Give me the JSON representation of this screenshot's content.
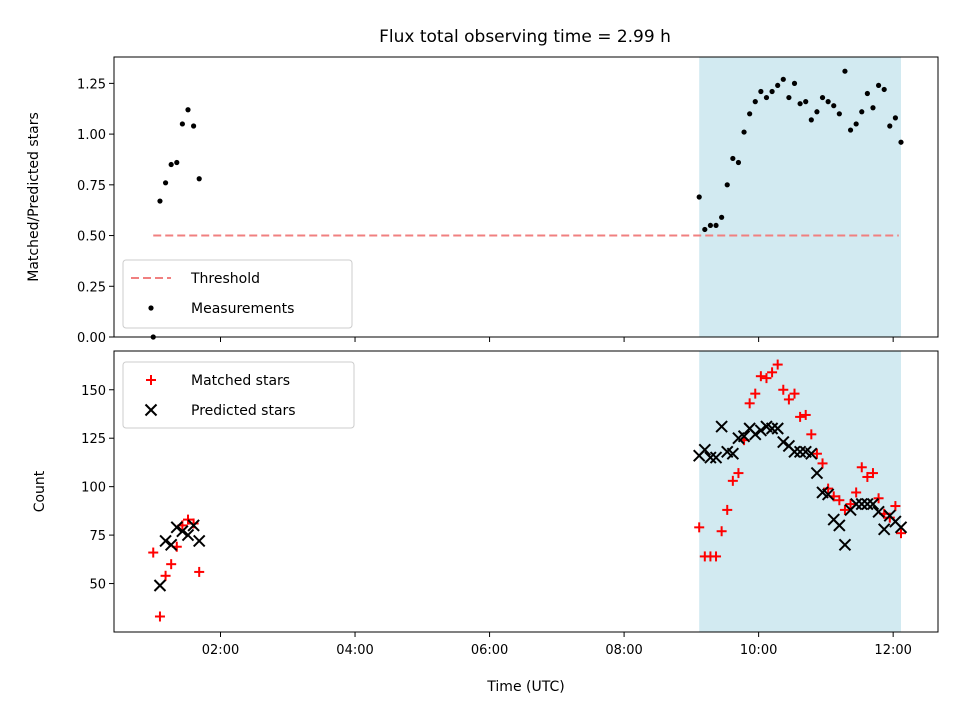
{
  "chart_data": [
    {
      "type": "scatter",
      "title": "Flux total observing time = 2.99 h",
      "xlabel": "",
      "ylabel": "Matched/Predicted stars",
      "xlim": [
        "00:25",
        "12:40"
      ],
      "ylim": [
        0,
        1.38
      ],
      "yticks": [
        0.0,
        0.25,
        0.5,
        0.75,
        1.0,
        1.25
      ],
      "ytick_labels": [
        "0.00",
        "0.25",
        "0.50",
        "0.75",
        "1.00",
        "1.25"
      ],
      "shaded_span": [
        "09:07",
        "12:07"
      ],
      "shaded_color": "#add8e6",
      "legend_position": "lower-left",
      "series": [
        {
          "name": "Threshold",
          "kind": "line",
          "style": "dashed",
          "color": "#f08080",
          "x": [
            "01:00",
            "12:05"
          ],
          "y": [
            0.5,
            0.5
          ]
        },
        {
          "name": "Measurements",
          "kind": "scatter",
          "marker": "dot",
          "color": "#000000",
          "x": [
            "01:00",
            "01:06",
            "01:11",
            "01:16",
            "01:21",
            "01:26",
            "01:31",
            "01:36",
            "01:41",
            "01:46",
            "09:07",
            "09:12",
            "09:17",
            "09:22",
            "09:27",
            "09:32",
            "09:37",
            "09:42",
            "09:47",
            "09:52",
            "09:57",
            "10:02",
            "10:07",
            "10:12",
            "10:17",
            "10:22",
            "10:27",
            "10:32",
            "10:37",
            "10:42",
            "10:47",
            "10:52",
            "10:57",
            "11:02",
            "11:07",
            "11:12",
            "11:17",
            "11:22",
            "11:27",
            "11:32",
            "11:37",
            "11:42",
            "11:47",
            "11:52",
            "11:57",
            "12:02",
            "12:07"
          ],
          "y": [
            0.0,
            0.67,
            0.76,
            0.85,
            0.86,
            1.05,
            1.12,
            1.04,
            0.78,
            null,
            0.69,
            0.53,
            0.55,
            0.55,
            0.59,
            0.75,
            0.88,
            0.86,
            1.01,
            1.1,
            1.16,
            1.21,
            1.18,
            1.21,
            1.24,
            1.27,
            1.18,
            1.25,
            1.15,
            1.16,
            1.07,
            1.11,
            1.18,
            1.16,
            1.14,
            1.1,
            1.31,
            1.02,
            1.05,
            1.11,
            1.2,
            1.13,
            1.24,
            1.22,
            1.04,
            1.08,
            0.96
          ]
        }
      ]
    },
    {
      "type": "scatter",
      "title": "",
      "xlabel": "Time (UTC)",
      "ylabel": "Count",
      "xlim": [
        "00:25",
        "12:40"
      ],
      "xticks": [
        "02:00",
        "04:00",
        "06:00",
        "08:00",
        "10:00",
        "12:00"
      ],
      "ylim": [
        25,
        170
      ],
      "yticks": [
        50,
        75,
        100,
        125,
        150
      ],
      "shaded_span": [
        "09:07",
        "12:07"
      ],
      "shaded_color": "#add8e6",
      "legend_position": "upper-left",
      "series": [
        {
          "name": "Matched stars",
          "kind": "scatter",
          "marker": "plus",
          "color": "#ff0000",
          "x": [
            "01:00",
            "01:06",
            "01:11",
            "01:16",
            "01:21",
            "01:26",
            "01:31",
            "01:36",
            "01:41",
            "01:46",
            "09:07",
            "09:12",
            "09:17",
            "09:22",
            "09:27",
            "09:32",
            "09:37",
            "09:42",
            "09:47",
            "09:52",
            "09:57",
            "10:02",
            "10:07",
            "10:12",
            "10:17",
            "10:22",
            "10:27",
            "10:32",
            "10:37",
            "10:42",
            "10:47",
            "10:52",
            "10:57",
            "11:02",
            "11:07",
            "11:12",
            "11:17",
            "11:22",
            "11:27",
            "11:32",
            "11:37",
            "11:42",
            "11:47",
            "11:52",
            "11:57",
            "12:02",
            "12:07"
          ],
          "y": [
            66,
            33,
            54,
            60,
            69,
            80,
            83,
            81,
            56,
            null,
            79,
            64,
            64,
            64,
            77,
            88,
            103,
            107,
            124,
            143,
            148,
            157,
            156,
            159,
            163,
            150,
            145,
            148,
            136,
            137,
            127,
            117,
            112,
            99,
            95,
            93,
            88,
            91,
            97,
            110,
            105,
            107,
            94,
            86,
            84,
            90,
            76
          ]
        },
        {
          "name": "Predicted stars",
          "kind": "scatter",
          "marker": "x",
          "color": "#000000",
          "x": [
            "01:06",
            "01:11",
            "01:16",
            "01:21",
            "01:26",
            "01:31",
            "01:36",
            "01:41",
            "01:46",
            "09:07",
            "09:12",
            "09:17",
            "09:22",
            "09:27",
            "09:32",
            "09:37",
            "09:42",
            "09:47",
            "09:52",
            "09:57",
            "10:02",
            "10:07",
            "10:12",
            "10:17",
            "10:22",
            "10:27",
            "10:32",
            "10:37",
            "10:42",
            "10:47",
            "10:52",
            "10:57",
            "11:02",
            "11:07",
            "11:12",
            "11:17",
            "11:22",
            "11:27",
            "11:32",
            "11:37",
            "11:42",
            "11:47",
            "11:52",
            "11:57",
            "12:02",
            "12:07"
          ],
          "y": [
            49,
            72,
            70,
            79,
            77,
            75,
            80,
            72,
            null,
            116,
            119,
            115,
            115,
            131,
            118,
            117,
            125,
            126,
            130,
            127,
            129,
            131,
            130,
            130,
            123,
            121,
            118,
            118,
            118,
            117,
            107,
            97,
            96,
            83,
            80,
            70,
            88,
            91,
            91,
            91,
            91,
            87,
            78,
            85,
            82,
            79
          ]
        }
      ]
    }
  ]
}
